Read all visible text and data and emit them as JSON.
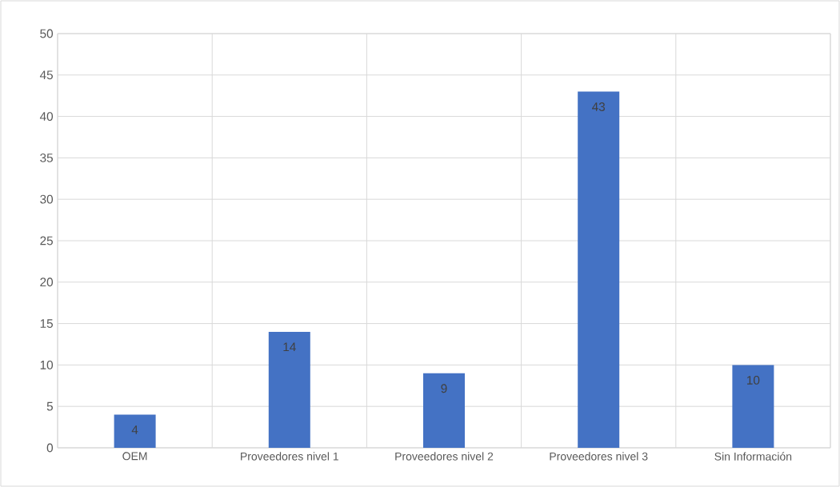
{
  "chart_data": {
    "type": "bar",
    "categories": [
      "OEM",
      "Proveedores nivel 1",
      "Proveedores nivel 2",
      "Proveedores nivel 3",
      "Sin Información"
    ],
    "values": [
      4,
      14,
      9,
      43,
      10
    ],
    "color": "#4472c4",
    "ylim": [
      0,
      50
    ],
    "yticks": [
      0,
      5,
      10,
      15,
      20,
      25,
      30,
      35,
      40,
      45,
      50
    ],
    "grid": true,
    "data_labels": true
  }
}
